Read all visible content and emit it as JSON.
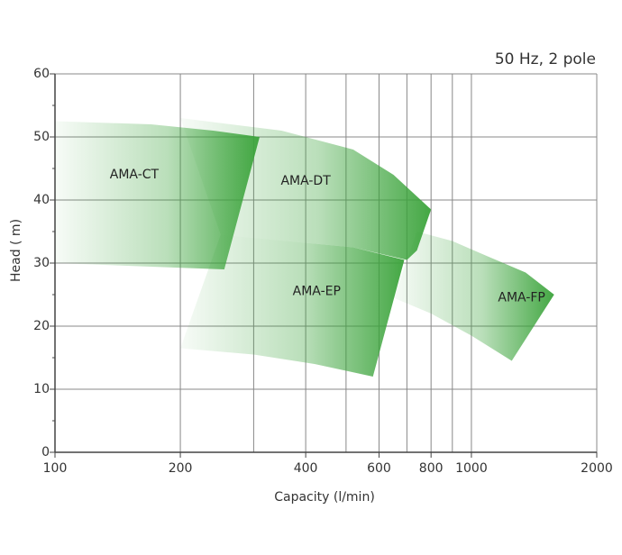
{
  "chart_data": {
    "type": "area",
    "subtitle": "50 Hz, 2 pole",
    "xlabel": "Capacity (l/min)",
    "ylabel": "Head ( m)",
    "x_scale": "log",
    "xlim": [
      100,
      2000
    ],
    "ylim": [
      0,
      60
    ],
    "x_ticks": [
      100,
      200,
      400,
      600,
      800,
      1000,
      2000
    ],
    "x_minor_gridlines": [
      300,
      500,
      700,
      900
    ],
    "y_ticks": [
      0,
      10,
      20,
      30,
      40,
      50,
      60
    ],
    "grid": true,
    "colors": {
      "fill": "#3aa33a",
      "grid": "#888888",
      "axis": "#444444"
    },
    "series": [
      {
        "name": "AMA-CT",
        "label_at": {
          "x": 155,
          "y": 44
        },
        "fade": "left-to-right",
        "outline": [
          [
            100,
            52.5
          ],
          [
            170,
            52
          ],
          [
            240,
            51
          ],
          [
            310,
            50
          ],
          [
            255,
            29
          ],
          [
            100,
            30
          ]
        ]
      },
      {
        "name": "AMA-DT",
        "label_at": {
          "x": 400,
          "y": 43
        },
        "fade": "left-to-right",
        "outline": [
          [
            200,
            53
          ],
          [
            350,
            51
          ],
          [
            520,
            48
          ],
          [
            650,
            44
          ],
          [
            800,
            38.5
          ],
          [
            740,
            32
          ],
          [
            700,
            30.5
          ],
          [
            520,
            32.5
          ],
          [
            250,
            34.5
          ]
        ]
      },
      {
        "name": "AMA-EP",
        "label_at": {
          "x": 425,
          "y": 25.5
        },
        "fade": "left-to-right",
        "outline": [
          [
            250,
            34.5
          ],
          [
            520,
            32.5
          ],
          [
            690,
            30.5
          ],
          [
            580,
            12
          ],
          [
            420,
            14
          ],
          [
            300,
            15.5
          ],
          [
            200,
            16.5
          ]
        ]
      },
      {
        "name": "AMA-FP",
        "label_at": {
          "x": 1320,
          "y": 24.5
        },
        "fade": "left-to-right",
        "outline": [
          [
            740,
            35
          ],
          [
            900,
            33.5
          ],
          [
            1100,
            31
          ],
          [
            1350,
            28.5
          ],
          [
            1580,
            25
          ],
          [
            1250,
            14.5
          ],
          [
            1000,
            18.5
          ],
          [
            800,
            22
          ],
          [
            650,
            24.5
          ]
        ]
      }
    ]
  }
}
